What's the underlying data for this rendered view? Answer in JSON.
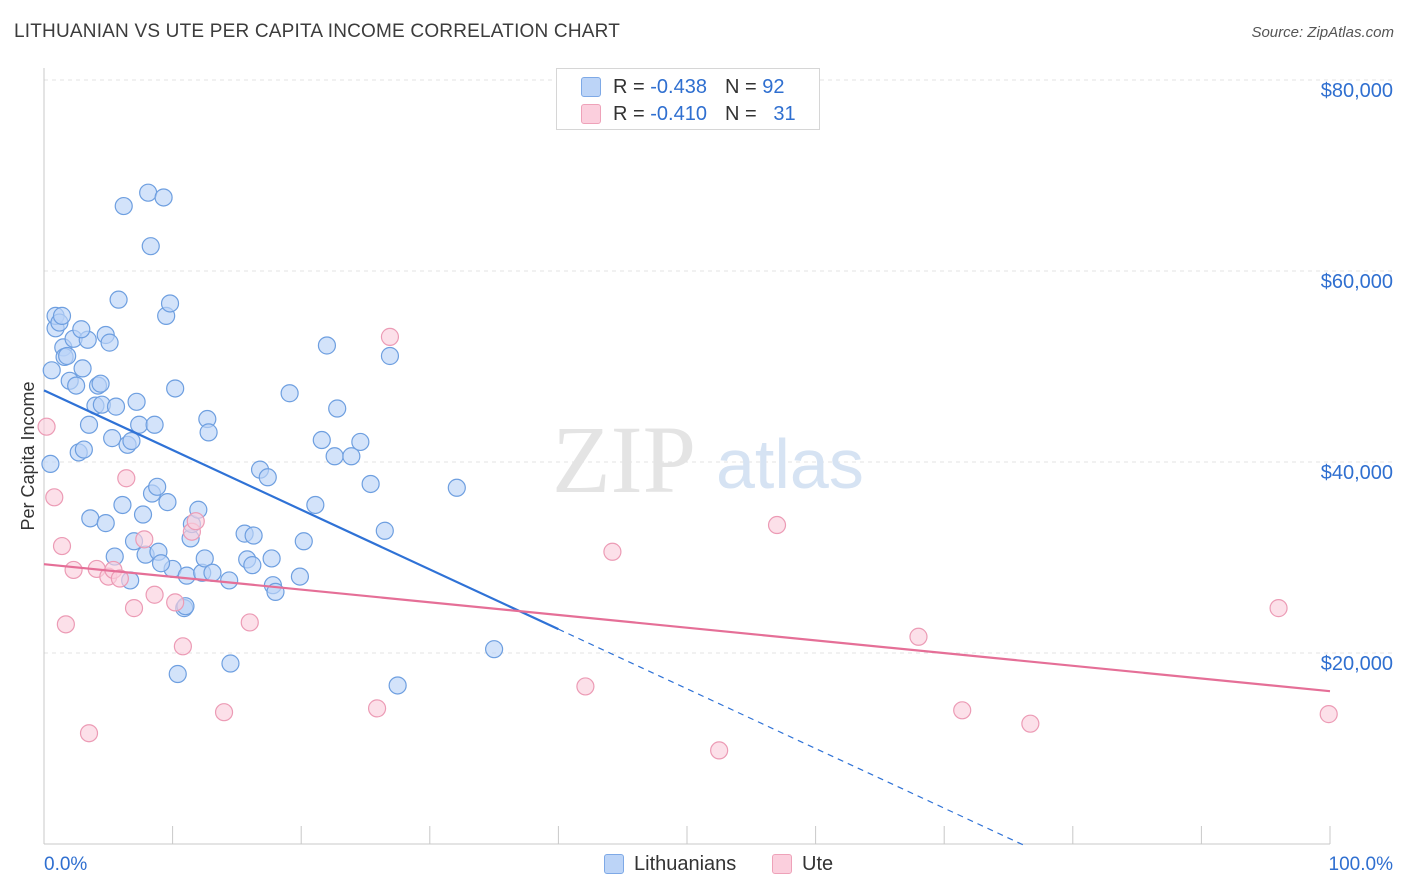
{
  "title": "LITHUANIAN VS UTE PER CAPITA INCOME CORRELATION CHART",
  "source": "Source: ZipAtlas.com",
  "watermark": {
    "zip": "ZIP",
    "atlas": "atlas"
  },
  "legend": {
    "rows": [
      {
        "r_label": "R = ",
        "r_value": "-0.438",
        "n_label": "N = ",
        "n_value": "92"
      },
      {
        "r_label": "R = ",
        "r_value": "-0.410",
        "n_label": "N = ",
        "n_value": "31"
      }
    ]
  },
  "colors": {
    "lithuanians_fill": "#bcd4f7",
    "lithuanians_stroke": "#6e9fe0",
    "lithuanians_line": "#2f72d6",
    "ute_fill": "#fbcfdd",
    "ute_stroke": "#ec9bb5",
    "ute_line": "#e56f97",
    "tick_label": "#2f6fd0",
    "grid": "#e3e3e3"
  },
  "chart_data": {
    "type": "scatter",
    "title": "LITHUANIAN VS UTE PER CAPITA INCOME CORRELATION CHART",
    "xlabel": "",
    "ylabel": "Per Capita Income",
    "xlim": [
      0,
      100
    ],
    "ylim": [
      0,
      80000
    ],
    "x_tick_labels": [
      "0.0%",
      "100.0%"
    ],
    "y_ticks": [
      20000,
      40000,
      60000,
      80000
    ],
    "y_tick_labels": [
      "$20,000",
      "$40,000",
      "$60,000",
      "$80,000"
    ],
    "grid": true,
    "legend_position": "top-center",
    "series": [
      {
        "name": "Lithuanians",
        "color": "#6e9fe0",
        "r": "-0.438",
        "n": "92",
        "points": [
          [
            0.6,
            49600
          ],
          [
            0.5,
            39800
          ],
          [
            0.9,
            54000
          ],
          [
            0.9,
            55300
          ],
          [
            1.2,
            54600
          ],
          [
            1.4,
            55300
          ],
          [
            1.5,
            52000
          ],
          [
            1.6,
            51000
          ],
          [
            1.8,
            51100
          ],
          [
            2.0,
            48500
          ],
          [
            2.3,
            52900
          ],
          [
            2.5,
            48000
          ],
          [
            2.7,
            41000
          ],
          [
            3.0,
            49800
          ],
          [
            3.1,
            41300
          ],
          [
            3.4,
            52800
          ],
          [
            3.5,
            43900
          ],
          [
            3.6,
            34100
          ],
          [
            4.0,
            45900
          ],
          [
            4.2,
            48000
          ],
          [
            4.4,
            48200
          ],
          [
            4.5,
            46000
          ],
          [
            4.8,
            33600
          ],
          [
            4.8,
            53300
          ],
          [
            5.1,
            52500
          ],
          [
            5.3,
            42500
          ],
          [
            5.5,
            30100
          ],
          [
            5.6,
            45800
          ],
          [
            5.8,
            57000
          ],
          [
            6.1,
            35500
          ],
          [
            6.2,
            66800
          ],
          [
            6.5,
            41800
          ],
          [
            6.7,
            27600
          ],
          [
            6.8,
            42200
          ],
          [
            7.0,
            31700
          ],
          [
            7.2,
            46300
          ],
          [
            7.4,
            43900
          ],
          [
            7.7,
            34500
          ],
          [
            7.9,
            30300
          ],
          [
            8.1,
            68200
          ],
          [
            8.3,
            62600
          ],
          [
            8.4,
            36700
          ],
          [
            8.6,
            43900
          ],
          [
            8.8,
            37400
          ],
          [
            8.9,
            30600
          ],
          [
            9.3,
            67700
          ],
          [
            9.5,
            55300
          ],
          [
            9.6,
            35800
          ],
          [
            9.8,
            56600
          ],
          [
            10.0,
            28800
          ],
          [
            10.2,
            47700
          ],
          [
            10.4,
            17800
          ],
          [
            10.9,
            24700
          ],
          [
            11.0,
            24900
          ],
          [
            11.1,
            28100
          ],
          [
            11.4,
            32000
          ],
          [
            11.5,
            33500
          ],
          [
            12.0,
            35000
          ],
          [
            12.3,
            28400
          ],
          [
            12.5,
            29900
          ],
          [
            12.7,
            44500
          ],
          [
            12.8,
            43100
          ],
          [
            13.1,
            28400
          ],
          [
            14.4,
            27600
          ],
          [
            14.5,
            18900
          ],
          [
            15.6,
            32500
          ],
          [
            15.8,
            29800
          ],
          [
            16.2,
            29200
          ],
          [
            16.3,
            32300
          ],
          [
            16.8,
            39200
          ],
          [
            17.4,
            38400
          ],
          [
            17.7,
            29900
          ],
          [
            17.8,
            27100
          ],
          [
            18.0,
            26400
          ],
          [
            19.1,
            47200
          ],
          [
            19.9,
            28000
          ],
          [
            20.2,
            31700
          ],
          [
            21.1,
            35500
          ],
          [
            21.6,
            42300
          ],
          [
            22.0,
            52200
          ],
          [
            22.6,
            40600
          ],
          [
            22.8,
            45600
          ],
          [
            23.9,
            40600
          ],
          [
            24.6,
            42100
          ],
          [
            25.4,
            37700
          ],
          [
            26.5,
            32800
          ],
          [
            26.9,
            51100
          ],
          [
            27.5,
            16600
          ],
          [
            32.1,
            37300
          ],
          [
            35.0,
            20400
          ],
          [
            2.9,
            53900
          ],
          [
            9.1,
            29400
          ]
        ]
      },
      {
        "name": "Ute",
        "color": "#ec9bb5",
        "r": "-0.410",
        "n": "31",
        "points": [
          [
            0.2,
            43700
          ],
          [
            0.8,
            36300
          ],
          [
            1.4,
            31200
          ],
          [
            1.7,
            23000
          ],
          [
            2.3,
            28700
          ],
          [
            3.5,
            11600
          ],
          [
            4.1,
            28800
          ],
          [
            5.0,
            28000
          ],
          [
            5.4,
            28700
          ],
          [
            5.9,
            27800
          ],
          [
            6.4,
            38300
          ],
          [
            7.0,
            24700
          ],
          [
            7.8,
            31900
          ],
          [
            8.6,
            26100
          ],
          [
            10.2,
            25300
          ],
          [
            10.8,
            20700
          ],
          [
            11.5,
            32700
          ],
          [
            11.8,
            33800
          ],
          [
            14.0,
            13800
          ],
          [
            16.0,
            23200
          ],
          [
            25.9,
            14200
          ],
          [
            26.9,
            53100
          ],
          [
            42.1,
            16500
          ],
          [
            44.2,
            30600
          ],
          [
            52.5,
            9800
          ],
          [
            57.0,
            33400
          ],
          [
            68.0,
            21700
          ],
          [
            71.4,
            14000
          ],
          [
            76.7,
            12600
          ],
          [
            96.0,
            24700
          ],
          [
            99.9,
            13600
          ]
        ]
      }
    ],
    "trend_lines": [
      {
        "series": "Lithuanians",
        "x0": 0,
        "y0": 47500,
        "x1": 40,
        "y1": 22500,
        "dashed_to_x": 76.2
      },
      {
        "series": "Ute",
        "x0": 0,
        "y0": 29300,
        "x1": 100,
        "y1": 16000
      }
    ]
  }
}
